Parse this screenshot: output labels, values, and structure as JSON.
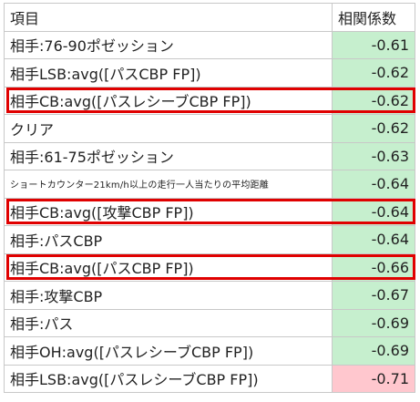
{
  "table": {
    "header": {
      "item": "項目",
      "value": "相関係数"
    },
    "rows": [
      {
        "item": "相手:76-90ポゼッション",
        "value": "-0.61",
        "small": false,
        "highlight": false
      },
      {
        "item": "相手LSB:avg([パスCBP FP])",
        "value": "-0.62",
        "small": false,
        "highlight": false
      },
      {
        "item": "相手CB:avg([パスレシーブCBP FP])",
        "value": "-0.62",
        "small": false,
        "highlight": true
      },
      {
        "item": "クリア",
        "value": "-0.62",
        "small": false,
        "highlight": false
      },
      {
        "item": "相手:61-75ポゼッション",
        "value": "-0.63",
        "small": false,
        "highlight": false
      },
      {
        "item": "ショートカウンター21km/h以上の走行一人当たりの平均距離",
        "value": "-0.64",
        "small": true,
        "highlight": false
      },
      {
        "item": "相手CB:avg([攻撃CBP FP])",
        "value": "-0.64",
        "small": false,
        "highlight": true
      },
      {
        "item": "相手:パスCBP",
        "value": "-0.64",
        "small": false,
        "highlight": false
      },
      {
        "item": "相手CB:avg([パスCBP FP])",
        "value": "-0.66",
        "small": false,
        "highlight": true
      },
      {
        "item": "相手:攻撃CBP",
        "value": "-0.67",
        "small": false,
        "highlight": false
      },
      {
        "item": "相手:パス",
        "value": "-0.69",
        "small": false,
        "highlight": false
      },
      {
        "item": "相手OH:avg([パスレシーブCBP FP])",
        "value": "-0.69",
        "small": false,
        "highlight": false
      },
      {
        "item": "相手LSB:avg([パスレシーブCBP FP])",
        "value": "-0.71",
        "small": false,
        "highlight": false,
        "negative_strong": true
      }
    ]
  },
  "colors": {
    "green_fill": "#c6efce",
    "red_fill": "#ffc7ce",
    "highlight_border": "#e00000",
    "grid": "#c8c8c8"
  }
}
